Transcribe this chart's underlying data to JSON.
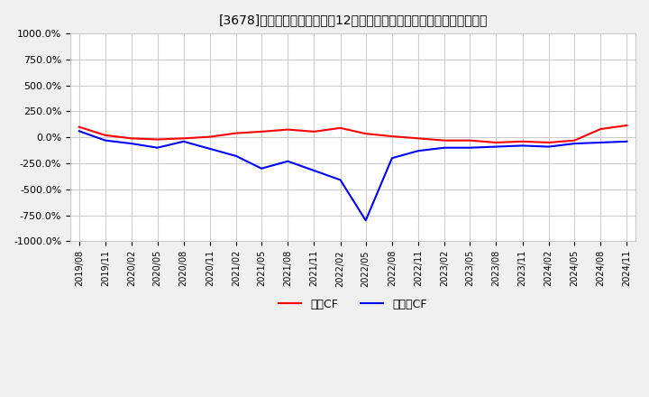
{
  "title": "[3678]　キャッシュフローの12か月移動合計の対前年同期増減率の推移",
  "ylabel": "",
  "ylim": [
    -1000,
    1000
  ],
  "yticks": [
    -1000,
    -750,
    -500,
    -250,
    0,
    250,
    500,
    750,
    1000
  ],
  "legend_labels": [
    "営業CF",
    "フリーCF"
  ],
  "legend_colors": [
    "#ff0000",
    "#0000ff"
  ],
  "bg_color": "#f0f0f0",
  "plot_bg_color": "#ffffff",
  "grid_color": "#cccccc",
  "dates_operating": [
    "2019-08",
    "2019-11",
    "2020-02",
    "2020-05",
    "2020-08",
    "2020-11",
    "2021-02",
    "2021-05",
    "2021-08",
    "2021-11",
    "2022-02",
    "2022-05",
    "2022-08",
    "2022-11",
    "2023-02",
    "2023-05",
    "2023-08",
    "2023-11",
    "2024-02",
    "2024-05",
    "2024-08",
    "2024-11"
  ],
  "values_operating": [
    100,
    20,
    -10,
    -20,
    -10,
    5,
    40,
    55,
    75,
    55,
    90,
    35,
    10,
    -10,
    -30,
    -30,
    -50,
    -40,
    -50,
    -30,
    80,
    115
  ],
  "dates_free": [
    "2019-08",
    "2019-11",
    "2020-02",
    "2020-05",
    "2020-08",
    "2020-11",
    "2021-02",
    "2021-05",
    "2021-08",
    "2021-11",
    "2022-02",
    "2022-05",
    "2022-08",
    "2022-11",
    "2023-02",
    "2023-05",
    "2023-08",
    "2023-11",
    "2024-02",
    "2024-05",
    "2024-08",
    "2024-11"
  ],
  "values_free": [
    60,
    -30,
    -60,
    -100,
    -40,
    -110,
    -180,
    -300,
    -230,
    -320,
    -410,
    -800,
    -200,
    -130,
    -100,
    -100,
    -90,
    -80,
    -90,
    -60,
    -50,
    -40
  ]
}
